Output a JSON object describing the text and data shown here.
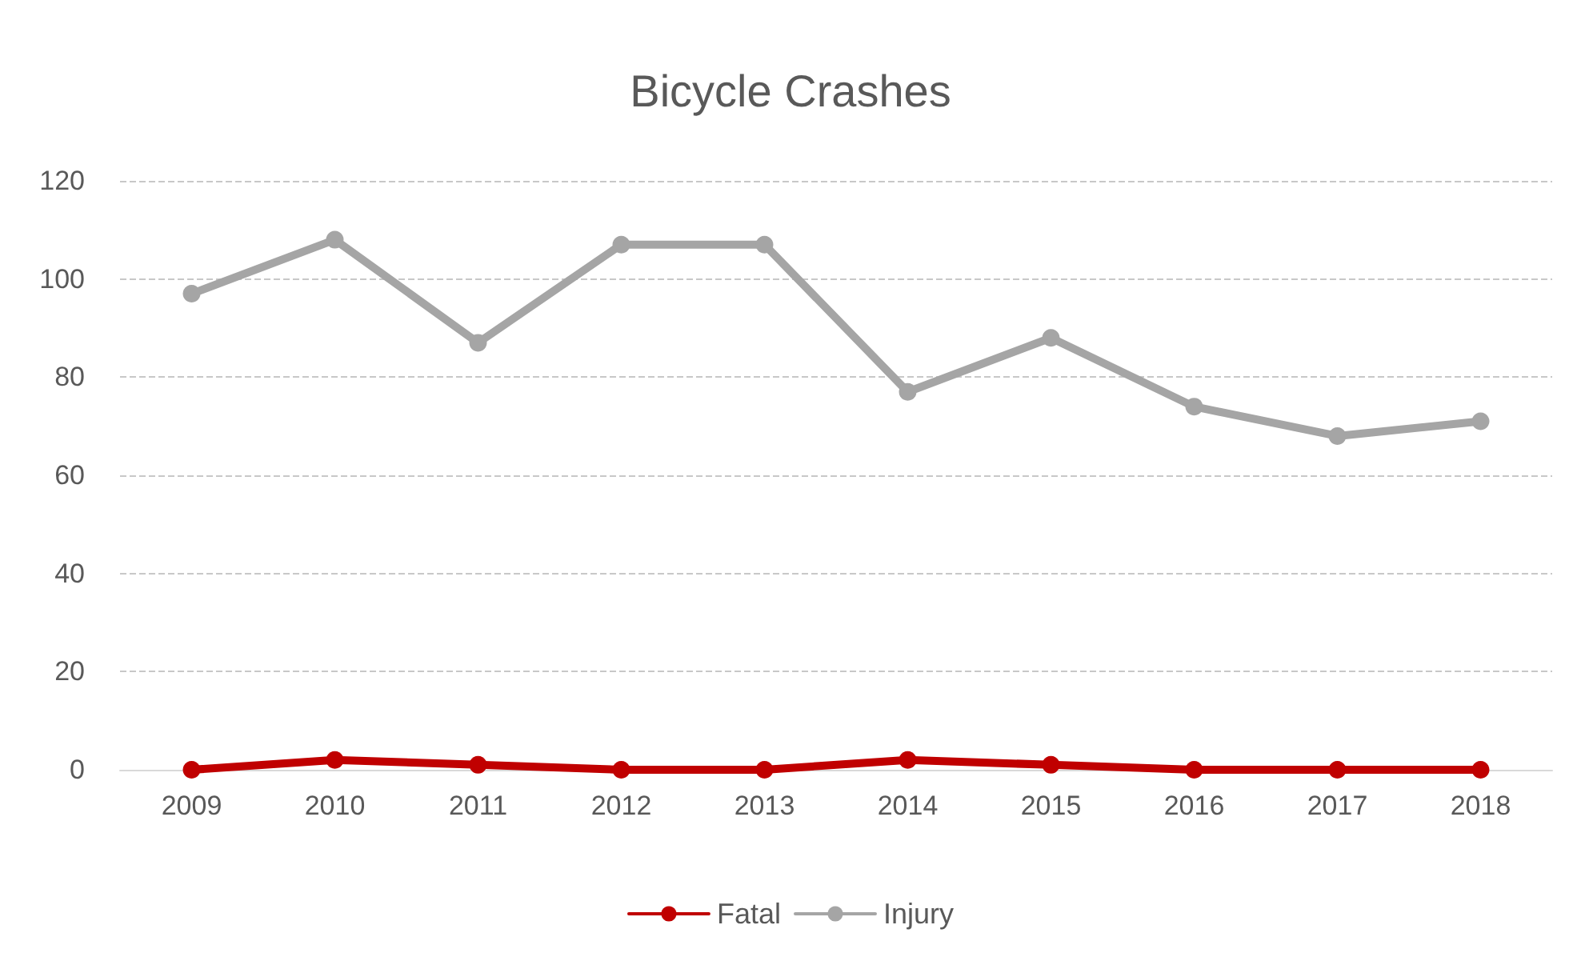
{
  "chart_data": {
    "type": "line",
    "title": "Bicycle Crashes",
    "categories": [
      "2009",
      "2010",
      "2011",
      "2012",
      "2013",
      "2014",
      "2015",
      "2016",
      "2017",
      "2018"
    ],
    "series": [
      {
        "name": "Fatal",
        "color": "#c00000",
        "values": [
          0,
          2,
          1,
          0,
          0,
          2,
          1,
          0,
          0,
          0
        ]
      },
      {
        "name": "Injury",
        "color": "#a5a5a5",
        "values": [
          97,
          108,
          87,
          107,
          107,
          77,
          88,
          74,
          68,
          71
        ]
      }
    ],
    "ylim": [
      0,
      120
    ],
    "yticks": [
      0,
      20,
      40,
      60,
      80,
      100,
      120
    ],
    "grid": "y",
    "legend": "bottom",
    "marker": "circle",
    "line_style": "solid"
  }
}
